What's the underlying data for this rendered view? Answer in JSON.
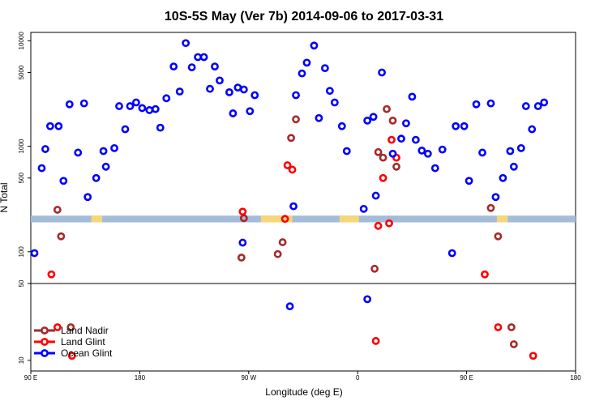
{
  "chart_data": {
    "type": "scatter",
    "title": "10S-5S May (Ver 7b)   2014-09-06 to 2017-03-31",
    "xlabel": "Longitude (deg E)",
    "ylabel": "N Total",
    "x_ticks": [
      {
        "value": 90,
        "label": "90 E"
      },
      {
        "value": 180,
        "label": "180"
      },
      {
        "value": 270,
        "label": "90 W"
      },
      {
        "value": 360,
        "label": "0"
      },
      {
        "value": 450,
        "label": "90 E"
      },
      {
        "value": 540,
        "label": "180"
      }
    ],
    "xlim": [
      90,
      540
    ],
    "y_scale": "log",
    "upper_panel": {
      "ylim": [
        50,
        12000
      ],
      "y_ticks": [
        {
          "value": 50,
          "label": "50"
        },
        {
          "value": 100,
          "label": "100"
        },
        {
          "value": 500,
          "label": "500"
        },
        {
          "value": 1000,
          "label": "1000"
        },
        {
          "value": 5000,
          "label": "5000"
        },
        {
          "value": 10000,
          "label": "10000"
        }
      ]
    },
    "lower_panel": {
      "ylim": [
        8,
        50
      ],
      "y_ticks": [
        {
          "value": 10,
          "label": "10"
        }
      ]
    },
    "land_strip": {
      "y_range": [
        190,
        220
      ],
      "ocean_color": "#a3bcd9",
      "land_color": "#f5d679",
      "land_segments": [
        [
          140,
          148
        ],
        [
          147,
          149
        ],
        [
          146,
          147
        ],
        [
          280,
          306
        ],
        [
          345,
          361
        ],
        [
          475,
          484
        ],
        [
          552,
          554
        ]
      ]
    },
    "legend_position": "bottom-left",
    "series": [
      {
        "name": "Land Nadir",
        "color": "#a52a2a",
        "points": [
          [
            112,
            250
          ],
          [
            115,
            140
          ],
          [
            123,
            20
          ],
          [
            264,
            88
          ],
          [
            266,
            208
          ],
          [
            294,
            95
          ],
          [
            298,
            123
          ],
          [
            305,
            1200
          ],
          [
            309,
            1800
          ],
          [
            374,
            69
          ],
          [
            377,
            880
          ],
          [
            381,
            780
          ],
          [
            384,
            2250
          ],
          [
            389,
            1750
          ],
          [
            392,
            640
          ],
          [
            470,
            260
          ],
          [
            476,
            140
          ],
          [
            487,
            20
          ],
          [
            489,
            14
          ]
        ]
      },
      {
        "name": "Land Glint",
        "color": "#ff0000",
        "points": [
          [
            107,
            61
          ],
          [
            112,
            20
          ],
          [
            124,
            11
          ],
          [
            265,
            240
          ],
          [
            300,
            205
          ],
          [
            302,
            660
          ],
          [
            306,
            600
          ],
          [
            375,
            15
          ],
          [
            377,
            176
          ],
          [
            381,
            500
          ],
          [
            386,
            186
          ],
          [
            388,
            1150
          ],
          [
            392,
            780
          ],
          [
            465,
            61
          ],
          [
            476,
            20
          ],
          [
            505,
            11
          ]
        ]
      },
      {
        "name": "Ocean Glint",
        "color": "#0000ff",
        "points": [
          [
            93,
            97
          ],
          [
            99,
            620
          ],
          [
            102,
            940
          ],
          [
            106,
            1550
          ],
          [
            113,
            1550
          ],
          [
            117,
            470
          ],
          [
            122,
            2500
          ],
          [
            129,
            870
          ],
          [
            134,
            2550
          ],
          [
            137,
            330
          ],
          [
            144,
            500
          ],
          [
            150,
            900
          ],
          [
            152,
            640
          ],
          [
            159,
            960
          ],
          [
            163,
            2400
          ],
          [
            168,
            1450
          ],
          [
            172,
            2400
          ],
          [
            177,
            2600
          ],
          [
            182,
            2300
          ],
          [
            188,
            2200
          ],
          [
            193,
            2250
          ],
          [
            197,
            1500
          ],
          [
            202,
            2850
          ],
          [
            208,
            5700
          ],
          [
            213,
            3300
          ],
          [
            218,
            9500
          ],
          [
            223,
            5600
          ],
          [
            228,
            7000
          ],
          [
            233,
            7000
          ],
          [
            238,
            3500
          ],
          [
            242,
            5700
          ],
          [
            246,
            4200
          ],
          [
            254,
            3250
          ],
          [
            257,
            2050
          ],
          [
            261,
            3600
          ],
          [
            266,
            3450
          ],
          [
            271,
            2150
          ],
          [
            275,
            3050
          ],
          [
            265,
            122
          ],
          [
            304,
            31
          ],
          [
            307,
            270
          ],
          [
            309,
            3050
          ],
          [
            314,
            4900
          ],
          [
            318,
            6200
          ],
          [
            324,
            9000
          ],
          [
            328,
            1850
          ],
          [
            333,
            5500
          ],
          [
            337,
            3350
          ],
          [
            341,
            2600
          ],
          [
            347,
            1550
          ],
          [
            351,
            900
          ],
          [
            368,
            1750
          ],
          [
            373,
            1900
          ],
          [
            365,
            255
          ],
          [
            368,
            36
          ],
          [
            375,
            340
          ],
          [
            380,
            5000
          ],
          [
            389,
            850
          ],
          [
            396,
            1180
          ],
          [
            400,
            1650
          ],
          [
            405,
            2950
          ],
          [
            408,
            1150
          ],
          [
            413,
            910
          ],
          [
            418,
            850
          ],
          [
            424,
            620
          ],
          [
            430,
            930
          ],
          [
            438,
            97
          ],
          [
            441,
            1550
          ],
          [
            448,
            1550
          ],
          [
            452,
            470
          ],
          [
            458,
            2500
          ],
          [
            463,
            870
          ],
          [
            470,
            2550
          ],
          [
            474,
            330
          ],
          [
            480,
            500
          ],
          [
            486,
            900
          ],
          [
            489,
            640
          ],
          [
            495,
            960
          ],
          [
            499,
            2400
          ],
          [
            504,
            1450
          ],
          [
            509,
            2400
          ],
          [
            514,
            2600
          ]
        ]
      }
    ]
  }
}
